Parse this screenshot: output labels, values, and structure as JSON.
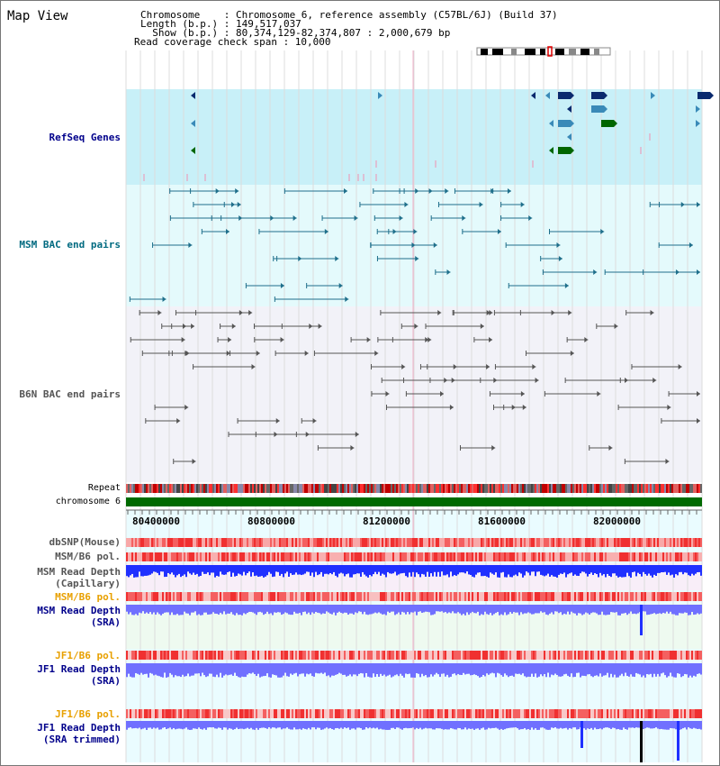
{
  "view": {
    "title": "Map View"
  },
  "info": {
    "chromosome": "Chromosome    : Chromosome 6, reference assembly (C57BL/6J) (Build 37)",
    "length": "Length (b.p.) : 149,517,037",
    "show": "  Show (b.p.) : 80,374,129-82,374,807 : 2,000,679 bp",
    "coverage": "Read coverage check span : 10,000"
  },
  "tracks": {
    "refseq": "RefSeq Genes",
    "msm_bac": "MSM BAC end pairs",
    "b6n_bac": "B6N BAC end pairs",
    "repeat": "Repeat",
    "chromosome": "chromosome 6",
    "dbsnp": "dbSNP(Mouse)",
    "msm_pol1": "MSM/B6 pol.",
    "msm_depth_cap_1": "MSM Read Depth",
    "msm_depth_cap_2": "(Capillary)",
    "msm_pol2": "MSM/B6 pol.",
    "msm_depth_sra_1": "MSM Read Depth",
    "msm_depth_sra_2": "(SRA)",
    "jf1_pol1": "JF1/B6 pol.",
    "jf1_depth_1": "JF1 Read Depth",
    "jf1_depth_2": "(SRA)",
    "jf1_pol2": "JF1/B6 pol.",
    "jf1_trim_1": "JF1 Read Depth",
    "jf1_trim_2": "(SRA trimmed)"
  },
  "axis": {
    "ticks": [
      "80400000",
      "80800000",
      "81200000",
      "81600000",
      "82000000"
    ]
  },
  "colors": {
    "refseq_bg": "#c8f0f8",
    "msm_bg": "#e4fafc",
    "b6n_bg": "#f2f2f8",
    "gene_dark": "#0a2a6e",
    "gene_mid": "#3a8ab8",
    "gene_green": "#006600",
    "bac_teal": "#1f6f8b",
    "bac_gray": "#555555",
    "depth_blue": "#2030ff",
    "depth_light": "#7070ff",
    "snp_red": "#f04040"
  }
}
